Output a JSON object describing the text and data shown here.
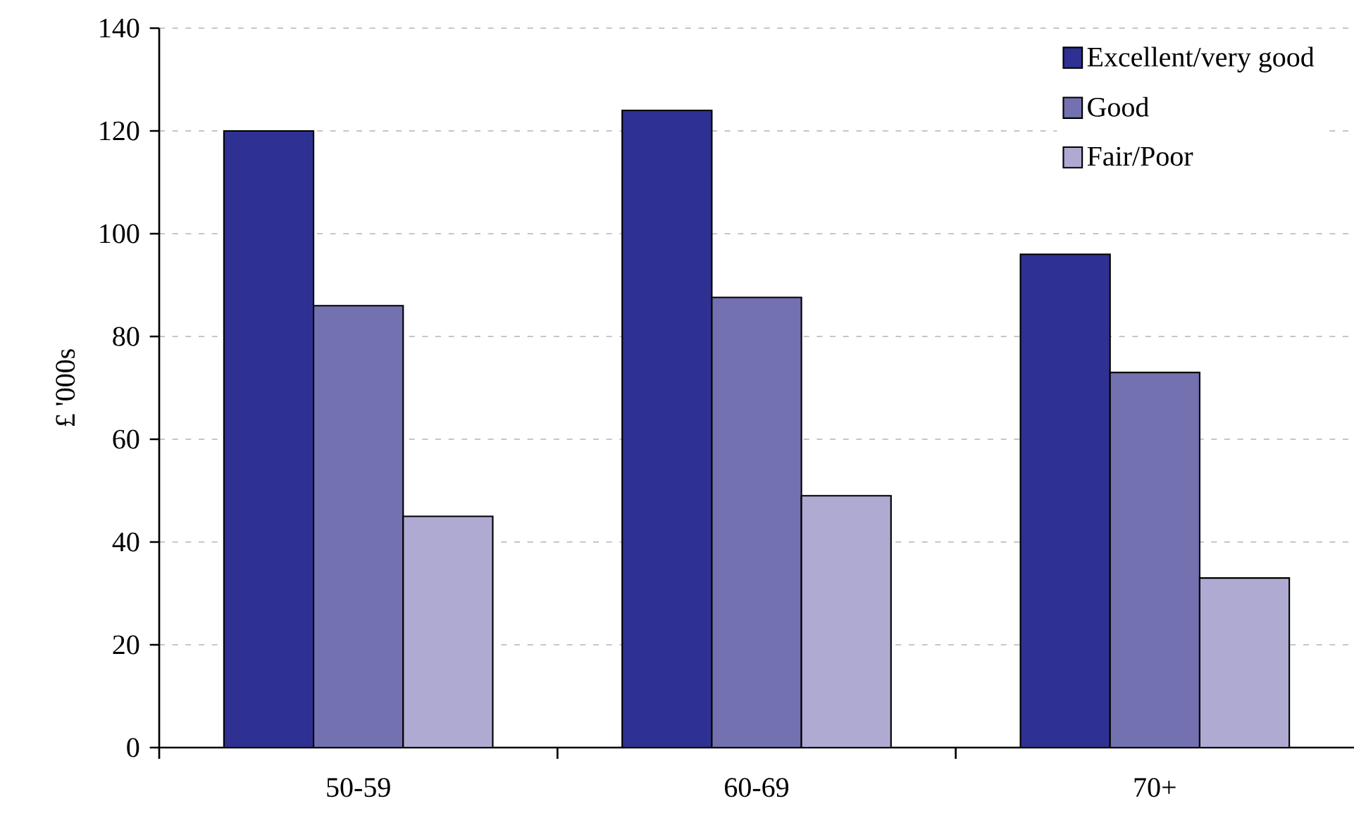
{
  "chart_data": {
    "type": "bar",
    "ylabel": "£ '000s",
    "categories": [
      "50-59",
      "60-69",
      "70+"
    ],
    "series": [
      {
        "name": "Excellent/very good",
        "color": "#2e3192",
        "values": [
          120,
          124,
          96
        ]
      },
      {
        "name": "Good",
        "color": "#7471b1",
        "values": [
          86,
          87.6,
          73
        ]
      },
      {
        "name": "Fair/Poor",
        "color": "#aeaad2",
        "values": [
          45,
          49,
          33
        ]
      }
    ],
    "ylim": [
      0,
      140
    ],
    "yticks": [
      0,
      20,
      40,
      60,
      80,
      100,
      120,
      140
    ],
    "grid": "y",
    "legend": "top right"
  }
}
